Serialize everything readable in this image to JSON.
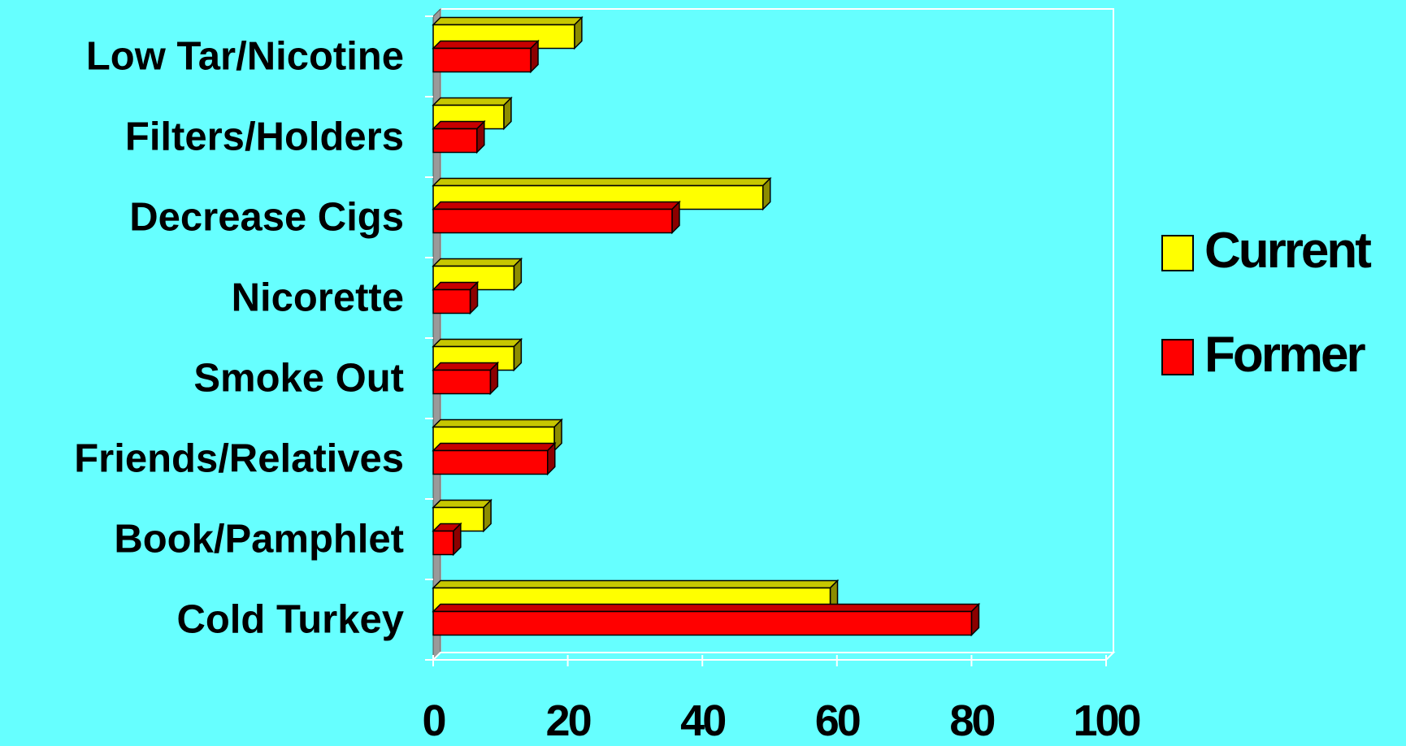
{
  "chart_data": {
    "type": "bar",
    "orientation": "horizontal",
    "style": "3d",
    "categories": [
      "Low Tar/Nicotine",
      "Filters/Holders",
      "Decrease Cigs",
      "Nicorette",
      "Smoke Out",
      "Friends/Relatives",
      "Book/Pamphlet",
      "Cold Turkey"
    ],
    "series": [
      {
        "name": "Current",
        "color": "#ffff00",
        "values": [
          21,
          10.5,
          49,
          12,
          12,
          18,
          7.5,
          59
        ]
      },
      {
        "name": "Former",
        "color": "#ff0000",
        "values": [
          14.5,
          6.5,
          35.5,
          5.5,
          8.5,
          17,
          3,
          80
        ]
      }
    ],
    "xlim": [
      0,
      100
    ],
    "x_ticks": [
      "0",
      "20",
      "40",
      "60",
      "80",
      "100"
    ],
    "legend_position": "right",
    "grid": false,
    "plot_background": "#66ffff",
    "page_background": "#66ffff"
  }
}
